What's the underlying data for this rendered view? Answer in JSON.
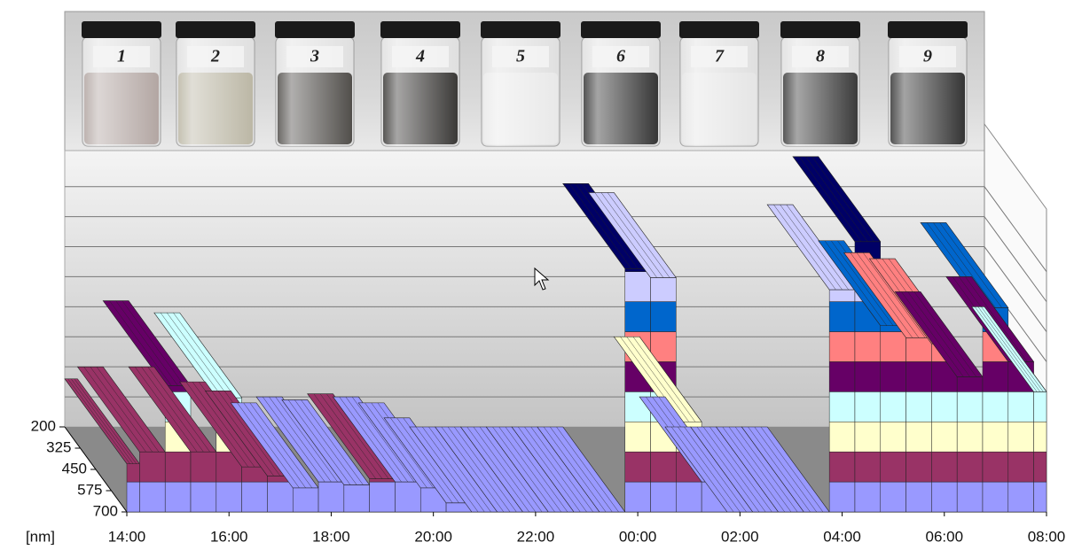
{
  "photo": {
    "labels": [
      "1",
      "2",
      "3",
      "4",
      "5",
      "6",
      "7",
      "8",
      "9"
    ]
  },
  "chart_data": {
    "type": "surface3d",
    "y_label": "[nm]",
    "x": [
      14,
      14.5,
      15,
      15.5,
      16,
      16.5,
      17,
      17.5,
      18,
      18.5,
      19,
      19.5,
      20,
      20.5,
      21,
      21.5,
      22,
      22.5,
      23,
      23.5,
      24,
      24.5,
      25,
      25.5,
      26,
      26.5,
      27,
      27.5,
      28,
      28.5,
      29,
      29.5,
      30,
      30.5,
      31,
      31.5,
      32
    ],
    "values": [
      1.6,
      2.0,
      4.2,
      2.0,
      3.8,
      1.5,
      1.2,
      0.8,
      1.0,
      0.9,
      1.1,
      1.0,
      0.8,
      0.3,
      0,
      0,
      0,
      0,
      0,
      0,
      8.1,
      7.8,
      3.0,
      1.0,
      0,
      0,
      0,
      0,
      7.4,
      9.0,
      6.2,
      5.8,
      5.6,
      4.5,
      6.8,
      5.0,
      4.0
    ],
    "xlim": [
      14,
      32
    ],
    "xticks": [
      {
        "value": 14,
        "label": "14:00"
      },
      {
        "value": 16,
        "label": "16:00"
      },
      {
        "value": 18,
        "label": "18:00"
      },
      {
        "value": 20,
        "label": "20:00"
      },
      {
        "value": 22,
        "label": "22:00"
      },
      {
        "value": 24,
        "label": "00:00"
      },
      {
        "value": 26,
        "label": "02:00"
      },
      {
        "value": 28,
        "label": "04:00"
      },
      {
        "value": 30,
        "label": "06:00"
      },
      {
        "value": 32,
        "label": "08:00"
      }
    ],
    "ylim": [
      200,
      700
    ],
    "yticks": [
      200,
      325,
      450,
      575,
      700
    ],
    "zlim": [
      0,
      9.2
    ],
    "zticks": [
      1,
      2,
      3,
      4,
      5,
      6,
      7,
      8
    ],
    "grid": true,
    "colors": [
      "#9999ff",
      "#993366",
      "#ffffcc",
      "#ccffff",
      "#660066",
      "#ff8080",
      "#0066cc",
      "#ccccff",
      "#000066"
    ]
  }
}
